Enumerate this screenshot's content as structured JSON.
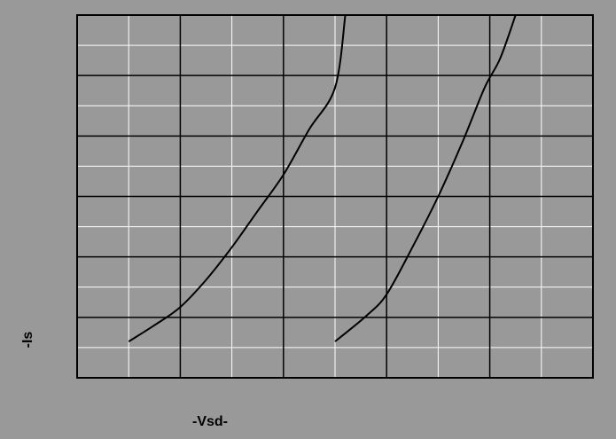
{
  "chart_data": {
    "type": "line",
    "title": "",
    "xlabel": "-Vsd-",
    "ylabel": "-Is",
    "xlim": [
      0,
      10
    ],
    "ylim": [
      0,
      10
    ],
    "grid": true,
    "major_grid": {
      "x_divisions": 5,
      "y_divisions": 6
    },
    "minor_grid": {
      "x_divisions": 10,
      "y_divisions": 12
    },
    "show_tick_labels": false,
    "series": [
      {
        "x": [
          1.0,
          1.5,
          2.0,
          2.5,
          3.0,
          3.5,
          4.0,
          4.5,
          5.0,
          5.2
        ],
        "y": [
          1.0,
          1.45,
          1.95,
          2.7,
          3.6,
          4.6,
          5.6,
          6.85,
          8.0,
          10.0
        ]
      },
      {
        "x": [
          5.0,
          5.6,
          6.0,
          6.5,
          7.0,
          7.5,
          7.9,
          8.2,
          8.5
        ],
        "y": [
          1.0,
          1.7,
          2.3,
          3.6,
          5.0,
          6.6,
          8.0,
          8.8,
          10.0
        ]
      }
    ],
    "colors": {
      "background": "#999999",
      "plot_area": "#999999",
      "major_grid": "#000000",
      "minor_grid": "#ffffff",
      "line": "#000000",
      "text": "#000000"
    }
  }
}
